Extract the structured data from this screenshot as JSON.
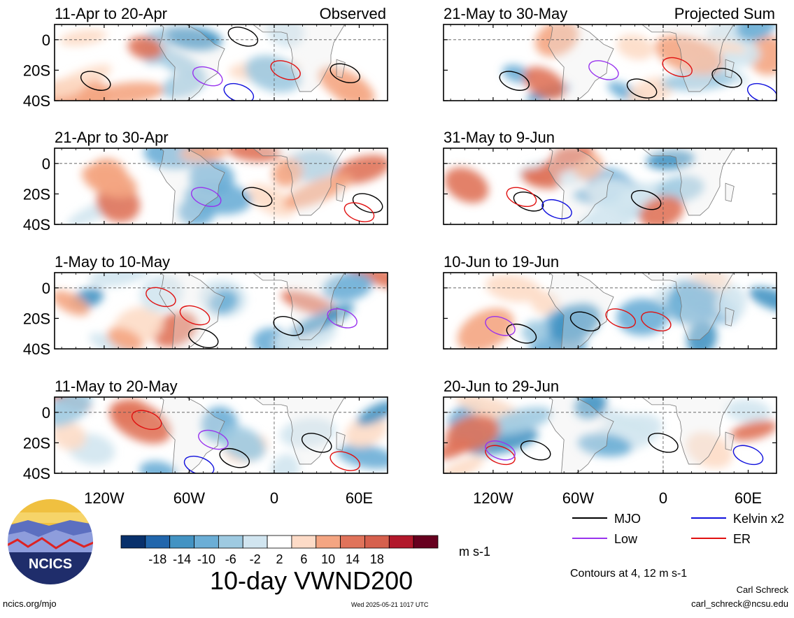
{
  "colors": {
    "scale": [
      "#08306b",
      "#2166ac",
      "#4393c3",
      "#6baed6",
      "#9ecae1",
      "#d1e5f0",
      "#ffffff",
      "#fddbc7",
      "#f4a582",
      "#e0735a",
      "#d6604d",
      "#b2182b",
      "#67001f"
    ],
    "mjo": "#000000",
    "low": "#9933ee",
    "kelvin": "#1010dd",
    "er": "#e01010"
  },
  "panel_header": {
    "observed": "Observed",
    "projected": "Projected Sum"
  },
  "chart_data": [
    {
      "type": "heatmap",
      "title": "11-Apr to 20-Apr",
      "tag": "Observed",
      "contours": [
        {
          "series": "MJO",
          "lon": -126,
          "lat": -27
        },
        {
          "series": "MJO",
          "lon": -22,
          "lat": 2
        },
        {
          "series": "MJO",
          "lon": 50,
          "lat": -22
        },
        {
          "series": "Low",
          "lon": -47,
          "lat": -24
        },
        {
          "series": "Kelvin x2",
          "lon": -25,
          "lat": -35
        },
        {
          "series": "ER",
          "lon": 8,
          "lat": -20
        }
      ]
    },
    {
      "type": "heatmap",
      "title": "21-Apr to 30-Apr",
      "tag": "",
      "contours": [
        {
          "series": "MJO",
          "lon": -12,
          "lat": -22
        },
        {
          "series": "MJO",
          "lon": 66,
          "lat": -26
        },
        {
          "series": "Low",
          "lon": -48,
          "lat": -22
        },
        {
          "series": "ER",
          "lon": 60,
          "lat": -32
        }
      ]
    },
    {
      "type": "heatmap",
      "title": "1-May to 10-May",
      "tag": "",
      "contours": [
        {
          "series": "MJO",
          "lon": 10,
          "lat": -25
        },
        {
          "series": "MJO",
          "lon": -50,
          "lat": -33
        },
        {
          "series": "ER",
          "lon": -56,
          "lat": -18
        },
        {
          "series": "ER",
          "lon": -80,
          "lat": -6
        },
        {
          "series": "Low",
          "lon": 48,
          "lat": -20
        }
      ]
    },
    {
      "type": "heatmap",
      "title": "11-May to 20-May",
      "tag": "",
      "contours": [
        {
          "series": "MJO",
          "lon": -28,
          "lat": -30
        },
        {
          "series": "MJO",
          "lon": 30,
          "lat": -20
        },
        {
          "series": "Low",
          "lon": -43,
          "lat": -18
        },
        {
          "series": "ER",
          "lon": -90,
          "lat": -5
        },
        {
          "series": "ER",
          "lon": 50,
          "lat": -32
        },
        {
          "series": "Kelvin x2",
          "lon": -53,
          "lat": -35
        }
      ]
    },
    {
      "type": "heatmap",
      "title": "21-May to 30-May",
      "tag": "Projected Sum",
      "contours": [
        {
          "series": "MJO",
          "lon": -105,
          "lat": -27
        },
        {
          "series": "MJO",
          "lon": -15,
          "lat": -32
        },
        {
          "series": "MJO",
          "lon": 45,
          "lat": -25
        },
        {
          "series": "Low",
          "lon": -42,
          "lat": -20
        },
        {
          "series": "ER",
          "lon": 10,
          "lat": -18
        },
        {
          "series": "Kelvin x2",
          "lon": 70,
          "lat": -35
        }
      ]
    },
    {
      "type": "heatmap",
      "title": "31-May to 9-Jun",
      "tag": "",
      "contours": [
        {
          "series": "MJO",
          "lon": -12,
          "lat": -24
        },
        {
          "series": "MJO",
          "lon": -95,
          "lat": -25
        },
        {
          "series": "ER",
          "lon": -100,
          "lat": -22
        },
        {
          "series": "Kelvin x2",
          "lon": -75,
          "lat": -30
        }
      ]
    },
    {
      "type": "heatmap",
      "title": "10-Jun to 19-Jun",
      "tag": "",
      "contours": [
        {
          "series": "MJO",
          "lon": -100,
          "lat": -30
        },
        {
          "series": "MJO",
          "lon": -55,
          "lat": -22
        },
        {
          "series": "ER",
          "lon": -30,
          "lat": -20
        },
        {
          "series": "ER",
          "lon": -5,
          "lat": -22
        },
        {
          "series": "Low",
          "lon": -115,
          "lat": -25
        }
      ]
    },
    {
      "type": "heatmap",
      "title": "20-Jun to 29-Jun",
      "tag": "",
      "contours": [
        {
          "series": "MJO",
          "lon": -90,
          "lat": -25
        },
        {
          "series": "MJO",
          "lon": 0,
          "lat": -20
        },
        {
          "series": "ER",
          "lon": -115,
          "lat": -28
        },
        {
          "series": "Low",
          "lon": -115,
          "lat": -25
        },
        {
          "series": "Kelvin x2",
          "lon": 60,
          "lat": -28
        }
      ]
    }
  ],
  "axes": {
    "y_ticks": [
      "0",
      "20S",
      "40S"
    ],
    "x_ticks": [
      "120W",
      "60W",
      "0",
      "60E"
    ],
    "lat_range": [
      -40,
      10
    ],
    "lon_range": [
      -155,
      80
    ]
  },
  "legend": {
    "items": [
      {
        "label": "MJO",
        "color": "#000000"
      },
      {
        "label": "Kelvin x2",
        "color": "#1010dd"
      },
      {
        "label": "Low",
        "color": "#9933ee"
      },
      {
        "label": "ER",
        "color": "#e01010"
      }
    ]
  },
  "colorbar": {
    "labels": [
      "-18",
      "-14",
      "-10",
      "-6",
      "-2",
      "2",
      "6",
      "10",
      "14",
      "18"
    ],
    "units": "m s-1",
    "title": "10-day VWND200"
  },
  "contour_note": "Contours at 4, 12 m s-1",
  "logo": {
    "text": "NCICS"
  },
  "footer": {
    "left": "ncics.org/mjo",
    "timestamp": "Wed 2025-05-21 1017 UTC",
    "author": "Carl Schreck",
    "email": "carl_schreck@ncsu.edu"
  }
}
